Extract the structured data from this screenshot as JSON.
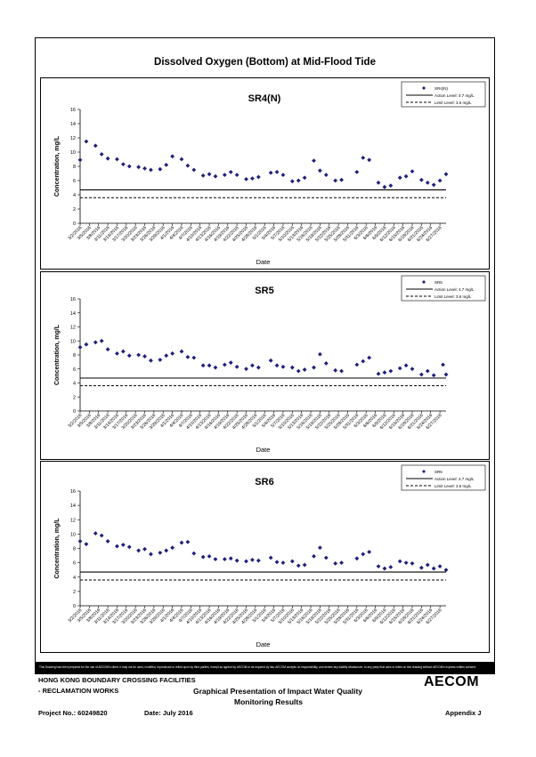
{
  "page_title": "Dissolved Oxygen (Bottom) at Mid-Flood Tide",
  "disclaimer": "This Drawing has been prepared for the use of AECOM's client. It may not be used, modified, reproduced or relied upon by third parties, except as agreed by AECOM or as required by law. AECOM accepts no responsibility, and denies any liability whatsoever, to any party that uses or relies on this drawing without AECOM's express written consent.",
  "footer": {
    "project_line1": "HONG KONG BOUNDARY CROSSING FACILITIES",
    "project_line2": "- RECLAMATION WORKS",
    "project_no": "Project No.: 60249820",
    "date": "Date: July 2016",
    "description_line1": "Graphical Presentation of Impact Water Quality",
    "description_line2": "Monitoring Results",
    "appendix": "Appendix J",
    "logo": "AECOM"
  },
  "shared_axes": {
    "ylabel": "Concentration, mg/L",
    "xlabel": "Date",
    "ylim": [
      0,
      16
    ],
    "yticks": [
      0,
      2,
      4,
      6,
      8,
      10,
      12,
      14,
      16
    ],
    "xtick_labels": [
      "3/2/2016",
      "3/5/2016",
      "3/8/2016",
      "3/11/2016",
      "3/14/2016",
      "3/17/2016",
      "3/20/2016",
      "3/23/2016",
      "3/26/2016",
      "3/29/2016",
      "4/1/2016",
      "4/4/2016",
      "4/7/2016",
      "4/10/2016",
      "4/13/2016",
      "4/16/2016",
      "4/19/2016",
      "4/22/2016",
      "4/25/2016",
      "4/28/2016",
      "5/1/2016",
      "5/4/2016",
      "5/7/2016",
      "5/10/2016",
      "5/13/2016",
      "5/16/2016",
      "5/19/2016",
      "5/22/2016",
      "5/25/2016",
      "5/28/2016",
      "5/31/2016",
      "6/3/2016",
      "6/6/2016",
      "6/9/2016",
      "6/12/2016",
      "6/15/2016",
      "6/18/2016",
      "6/21/2016",
      "6/24/2016",
      "6/27/2016"
    ],
    "x_start": "3/2/2016",
    "x_end": "6/29/2016",
    "action_level": 4.7,
    "limit_level": 3.6,
    "legend_action": "Action Level: 4.7 mg/L",
    "legend_limit": "Limit Level: 3.6 mg/L",
    "grid": false,
    "legend_position": "top-right"
  },
  "chart_data": [
    {
      "type": "scatter",
      "title": "SR4(N)",
      "series": [
        {
          "name": "SR4(N)",
          "color": "#1f1f7a",
          "points": [
            [
              "3/2/2016",
              8.9
            ],
            [
              "3/4/2016",
              11.5
            ],
            [
              "3/7/2016",
              10.9
            ],
            [
              "3/9/2016",
              9.7
            ],
            [
              "3/11/2016",
              9.1
            ],
            [
              "3/14/2016",
              9.0
            ],
            [
              "3/16/2016",
              8.3
            ],
            [
              "3/18/2016",
              8.0
            ],
            [
              "3/21/2016",
              7.9
            ],
            [
              "3/23/2016",
              7.7
            ],
            [
              "3/25/2016",
              7.5
            ],
            [
              "3/28/2016",
              7.6
            ],
            [
              "3/30/2016",
              8.2
            ],
            [
              "4/1/2016",
              9.4
            ],
            [
              "4/4/2016",
              9.0
            ],
            [
              "4/6/2016",
              8.1
            ],
            [
              "4/8/2016",
              7.5
            ],
            [
              "4/11/2016",
              6.7
            ],
            [
              "4/13/2016",
              6.9
            ],
            [
              "4/15/2016",
              6.6
            ],
            [
              "4/18/2016",
              6.8
            ],
            [
              "4/20/2016",
              7.2
            ],
            [
              "4/22/2016",
              6.8
            ],
            [
              "4/25/2016",
              6.2
            ],
            [
              "4/27/2016",
              6.3
            ],
            [
              "4/29/2016",
              6.5
            ],
            [
              "5/3/2016",
              7.1
            ],
            [
              "5/5/2016",
              7.2
            ],
            [
              "5/7/2016",
              6.8
            ],
            [
              "5/10/2016",
              5.9
            ],
            [
              "5/12/2016",
              6.0
            ],
            [
              "5/14/2016",
              6.4
            ],
            [
              "5/17/2016",
              8.8
            ],
            [
              "5/19/2016",
              7.4
            ],
            [
              "5/21/2016",
              6.8
            ],
            [
              "5/24/2016",
              6.0
            ],
            [
              "5/26/2016",
              6.1
            ],
            [
              "5/31/2016",
              7.2
            ],
            [
              "6/2/2016",
              9.2
            ],
            [
              "6/4/2016",
              8.9
            ],
            [
              "6/7/2016",
              5.7
            ],
            [
              "6/9/2016",
              5.1
            ],
            [
              "6/11/2016",
              5.3
            ],
            [
              "6/14/2016",
              6.4
            ],
            [
              "6/16/2016",
              6.6
            ],
            [
              "6/18/2016",
              7.3
            ],
            [
              "6/21/2016",
              6.1
            ],
            [
              "6/23/2016",
              5.7
            ],
            [
              "6/25/2016",
              5.4
            ],
            [
              "6/27/2016",
              6.0
            ],
            [
              "6/29/2016",
              6.9
            ]
          ]
        }
      ]
    },
    {
      "type": "scatter",
      "title": "SR5",
      "series": [
        {
          "name": "SR5",
          "color": "#1f1f7a",
          "points": [
            [
              "3/2/2016",
              9.1
            ],
            [
              "3/4/2016",
              9.5
            ],
            [
              "3/7/2016",
              9.8
            ],
            [
              "3/9/2016",
              10.0
            ],
            [
              "3/11/2016",
              8.8
            ],
            [
              "3/14/2016",
              8.2
            ],
            [
              "3/16/2016",
              8.5
            ],
            [
              "3/18/2016",
              7.9
            ],
            [
              "3/21/2016",
              8.0
            ],
            [
              "3/23/2016",
              7.8
            ],
            [
              "3/25/2016",
              7.2
            ],
            [
              "3/28/2016",
              7.3
            ],
            [
              "3/30/2016",
              7.9
            ],
            [
              "4/1/2016",
              8.2
            ],
            [
              "4/4/2016",
              8.5
            ],
            [
              "4/6/2016",
              7.7
            ],
            [
              "4/8/2016",
              7.6
            ],
            [
              "4/11/2016",
              6.5
            ],
            [
              "4/13/2016",
              6.5
            ],
            [
              "4/15/2016",
              6.2
            ],
            [
              "4/18/2016",
              6.6
            ],
            [
              "4/20/2016",
              6.9
            ],
            [
              "4/22/2016",
              6.3
            ],
            [
              "4/25/2016",
              6.0
            ],
            [
              "4/27/2016",
              6.5
            ],
            [
              "4/29/2016",
              6.2
            ],
            [
              "5/3/2016",
              7.2
            ],
            [
              "5/5/2016",
              6.5
            ],
            [
              "5/7/2016",
              6.3
            ],
            [
              "5/10/2016",
              6.2
            ],
            [
              "5/12/2016",
              5.7
            ],
            [
              "5/14/2016",
              5.9
            ],
            [
              "5/17/2016",
              6.2
            ],
            [
              "5/19/2016",
              8.1
            ],
            [
              "5/21/2016",
              6.8
            ],
            [
              "5/24/2016",
              5.8
            ],
            [
              "5/26/2016",
              5.7
            ],
            [
              "5/31/2016",
              6.6
            ],
            [
              "6/2/2016",
              7.1
            ],
            [
              "6/4/2016",
              7.6
            ],
            [
              "6/7/2016",
              5.3
            ],
            [
              "6/9/2016",
              5.5
            ],
            [
              "6/11/2016",
              5.7
            ],
            [
              "6/14/2016",
              6.1
            ],
            [
              "6/16/2016",
              6.5
            ],
            [
              "6/18/2016",
              6.0
            ],
            [
              "6/21/2016",
              5.2
            ],
            [
              "6/23/2016",
              5.7
            ],
            [
              "6/25/2016",
              5.1
            ],
            [
              "6/28/2016",
              6.6
            ],
            [
              "6/29/2016",
              5.2
            ]
          ]
        }
      ]
    },
    {
      "type": "scatter",
      "title": "SR6",
      "series": [
        {
          "name": "SR6",
          "color": "#1f1f7a",
          "points": [
            [
              "3/2/2016",
              9.0
            ],
            [
              "3/4/2016",
              8.6
            ],
            [
              "3/7/2016",
              10.1
            ],
            [
              "3/9/2016",
              9.8
            ],
            [
              "3/11/2016",
              9.0
            ],
            [
              "3/14/2016",
              8.3
            ],
            [
              "3/16/2016",
              8.5
            ],
            [
              "3/18/2016",
              8.2
            ],
            [
              "3/21/2016",
              7.7
            ],
            [
              "3/23/2016",
              7.9
            ],
            [
              "3/25/2016",
              7.2
            ],
            [
              "3/28/2016",
              7.4
            ],
            [
              "3/30/2016",
              7.7
            ],
            [
              "4/1/2016",
              8.1
            ],
            [
              "4/4/2016",
              8.8
            ],
            [
              "4/6/2016",
              8.9
            ],
            [
              "4/8/2016",
              7.3
            ],
            [
              "4/11/2016",
              6.8
            ],
            [
              "4/13/2016",
              6.9
            ],
            [
              "4/15/2016",
              6.5
            ],
            [
              "4/18/2016",
              6.5
            ],
            [
              "4/20/2016",
              6.6
            ],
            [
              "4/22/2016",
              6.3
            ],
            [
              "4/25/2016",
              6.2
            ],
            [
              "4/27/2016",
              6.4
            ],
            [
              "4/29/2016",
              6.3
            ],
            [
              "5/3/2016",
              6.7
            ],
            [
              "5/5/2016",
              6.1
            ],
            [
              "5/7/2016",
              6.0
            ],
            [
              "5/10/2016",
              6.2
            ],
            [
              "5/12/2016",
              5.6
            ],
            [
              "5/14/2016",
              5.7
            ],
            [
              "5/17/2016",
              6.9
            ],
            [
              "5/19/2016",
              8.1
            ],
            [
              "5/21/2016",
              6.7
            ],
            [
              "5/24/2016",
              5.9
            ],
            [
              "5/26/2016",
              6.0
            ],
            [
              "5/31/2016",
              6.6
            ],
            [
              "6/2/2016",
              7.2
            ],
            [
              "6/4/2016",
              7.5
            ],
            [
              "6/7/2016",
              5.5
            ],
            [
              "6/9/2016",
              5.2
            ],
            [
              "6/11/2016",
              5.4
            ],
            [
              "6/14/2016",
              6.2
            ],
            [
              "6/16/2016",
              6.0
            ],
            [
              "6/18/2016",
              5.9
            ],
            [
              "6/21/2016",
              5.3
            ],
            [
              "6/23/2016",
              5.7
            ],
            [
              "6/25/2016",
              5.2
            ],
            [
              "6/27/2016",
              5.5
            ],
            [
              "6/29/2016",
              5.0
            ]
          ]
        }
      ]
    }
  ]
}
